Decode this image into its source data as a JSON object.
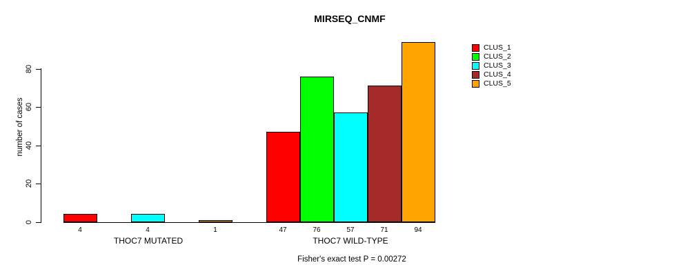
{
  "chart": {
    "title": "MIRSEQ_CNMF",
    "ylabel": "number of cases",
    "footer": "Fisher's exact test P = 0.00272"
  },
  "chart_data": {
    "type": "bar",
    "title": "MIRSEQ_CNMF",
    "xlabel": "",
    "ylabel": "number of cases",
    "ylim": [
      0,
      94
    ],
    "yticks": [
      0,
      20,
      40,
      60,
      80
    ],
    "grid": false,
    "legend_position": "outside-top-right",
    "categories": [
      "THOC7 MUTATED",
      "THOC7 WILD-TYPE"
    ],
    "series": [
      {
        "name": "CLUS_1",
        "color": "#FF0000",
        "values": [
          4,
          47
        ]
      },
      {
        "name": "CLUS_2",
        "color": "#00FF00",
        "values": [
          0,
          76
        ]
      },
      {
        "name": "CLUS_3",
        "color": "#00FFFF",
        "values": [
          4,
          57
        ]
      },
      {
        "name": "CLUS_4",
        "color": "#A52A2A",
        "values": [
          0,
          71
        ]
      },
      {
        "name": "CLUS_5",
        "color": "#FFA500",
        "values": [
          1,
          94
        ]
      }
    ],
    "visible_bar_value_labels": {
      "THOC7 MUTATED": [
        "4",
        "4",
        "1"
      ],
      "THOC7 WILD-TYPE": [
        "47",
        "76",
        "57",
        "71",
        "94"
      ]
    },
    "annotation": "Fisher's exact test P = 0.00272"
  }
}
